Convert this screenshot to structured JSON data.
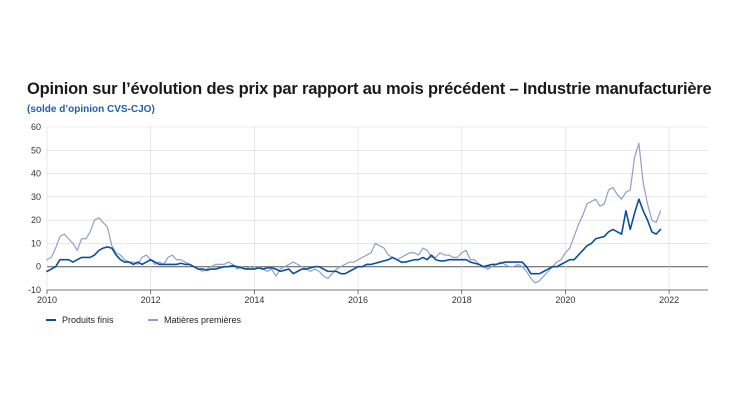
{
  "colors": {
    "produits": "#0b4f9c",
    "matieres": "#8e9fcc",
    "grid": "#d9d9d9",
    "zero": "#555555"
  },
  "chart_data": {
    "type": "line",
    "title": "Opinion sur l’évolution des prix par rapport au mois précédent – Industrie manufacturière",
    "subtitle": "(solde d’opinion CVS-CJO)",
    "xlabel": "",
    "ylabel": "",
    "xlim": [
      2010,
      2022.75
    ],
    "ylim": [
      -10,
      60
    ],
    "yticks": [
      -10,
      0,
      10,
      20,
      30,
      40,
      50,
      60
    ],
    "xticks": [
      2010,
      2012,
      2014,
      2016,
      2018,
      2020,
      2022
    ],
    "x_start": 2010,
    "x_step_months": 1,
    "series": [
      {
        "name": "Produits finis",
        "values": [
          -2,
          -1,
          0,
          3,
          3,
          3,
          2,
          3,
          4,
          4,
          4,
          5,
          7,
          8,
          8.5,
          8,
          5,
          3,
          2,
          2,
          1,
          2,
          1,
          2,
          3,
          2,
          1,
          1,
          1,
          1,
          1,
          1.5,
          1,
          1,
          0,
          -1,
          -1,
          -1.5,
          -1,
          -1,
          -0.5,
          0,
          0,
          0.5,
          0,
          -0.5,
          -1,
          -1,
          -1,
          -0.5,
          -1,
          -0.5,
          -0.5,
          -1,
          -2,
          -1.5,
          -1,
          -3,
          -2,
          -1,
          -1,
          -0.5,
          0,
          0,
          -1,
          -2,
          -2,
          -2,
          -3,
          -3,
          -2,
          -1,
          0,
          0,
          1,
          1,
          1.5,
          2,
          2.5,
          3,
          4,
          3,
          2,
          2,
          2.5,
          3,
          3,
          4,
          3,
          5,
          3,
          2.5,
          2.5,
          3,
          3,
          3,
          3,
          3,
          2,
          1.5,
          1,
          0,
          0.5,
          1,
          1,
          1.5,
          2,
          2,
          2,
          2,
          2,
          0,
          -3,
          -3,
          -3,
          -2,
          -1,
          0,
          0,
          1,
          2,
          3,
          3,
          5,
          7,
          9,
          10,
          12,
          12.5,
          13,
          15,
          16,
          15,
          14,
          24,
          16,
          23,
          29,
          24,
          20,
          15,
          14,
          16
        ]
      },
      {
        "name": "Matières premières",
        "values": [
          3,
          4,
          8,
          13,
          14,
          12,
          10,
          7,
          12,
          12,
          15,
          20,
          21,
          19,
          17,
          9,
          6,
          5,
          3,
          2,
          2,
          1,
          4,
          5,
          3,
          1,
          2,
          1,
          4,
          5,
          3,
          3,
          2,
          1,
          0,
          -1,
          -2,
          -1,
          0,
          1,
          1,
          1,
          2,
          1,
          -1,
          0,
          -1,
          0,
          -1,
          0,
          -1,
          -2,
          -1,
          -4,
          -1,
          0,
          1,
          2,
          1,
          0,
          -1,
          -2,
          -1,
          -2,
          -4,
          -5,
          -3,
          -1,
          0,
          1,
          2,
          2,
          3,
          4,
          5,
          6,
          10,
          9,
          8,
          5,
          4,
          3,
          4,
          5,
          6,
          6,
          5,
          8,
          7,
          4,
          4,
          6,
          5,
          5,
          4,
          4,
          6,
          7,
          3,
          3,
          1,
          0,
          -1,
          0,
          1,
          2,
          1,
          0,
          0,
          1,
          0,
          -2,
          -5,
          -7,
          -6,
          -4,
          -2,
          0,
          2,
          3,
          6,
          8,
          13,
          18,
          22,
          27,
          28,
          29,
          26,
          27,
          33,
          34,
          31,
          29,
          32,
          33,
          47,
          53,
          36,
          27,
          20,
          19,
          24
        ]
      }
    ]
  }
}
